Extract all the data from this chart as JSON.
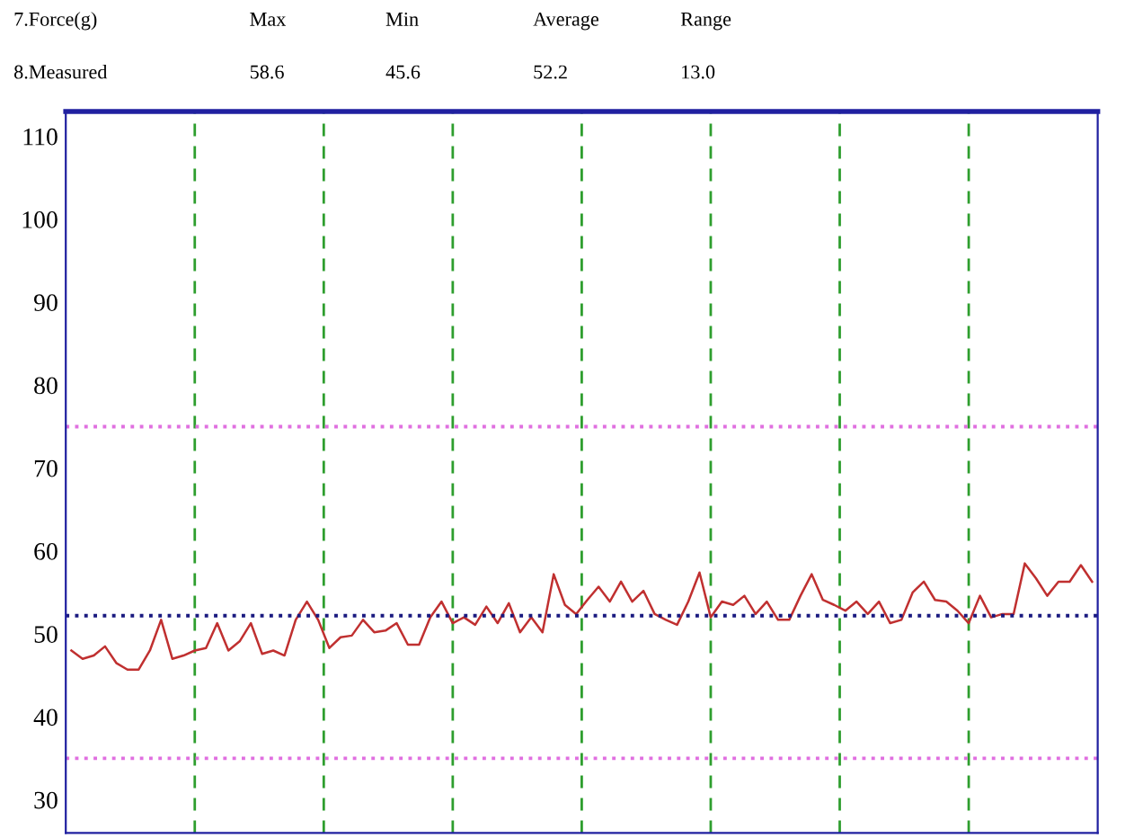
{
  "chart_data": {
    "type": "line",
    "annotations": [
      "7.Force(g)",
      "Max",
      "Min",
      "Average",
      "Range",
      "8.Measured",
      "58.6",
      "45.6",
      "52.2",
      "13.0"
    ],
    "categories": [
      null,
      null,
      null,
      null,
      null,
      null,
      null,
      null,
      null,
      null,
      null,
      null,
      null,
      null,
      null,
      null,
      null,
      null,
      null,
      null,
      null,
      null,
      null,
      null,
      null,
      null,
      null,
      null,
      null,
      null,
      null,
      null,
      null,
      null,
      null,
      null,
      null,
      null,
      null,
      null,
      null,
      null,
      null,
      null,
      null,
      null,
      null,
      null,
      null,
      null,
      null,
      null,
      null,
      null,
      null,
      null,
      null,
      null,
      null,
      null,
      null,
      null,
      null,
      null,
      null,
      null,
      null,
      null,
      null,
      null,
      null,
      null,
      null,
      null,
      null,
      null,
      null,
      null,
      null,
      null,
      null,
      null,
      null,
      null,
      null,
      null,
      null,
      null,
      null,
      null,
      null,
      null
    ],
    "series": [
      {
        "color": "#c03030",
        "values": [
          48.0,
          47.0,
          47.4,
          48.5,
          46.5,
          45.7,
          45.7,
          48.0,
          51.7,
          47.0,
          47.4,
          48.0,
          48.3,
          51.3,
          48.0,
          49.1,
          51.3,
          47.6,
          48.0,
          47.4,
          51.7,
          53.9,
          51.7,
          48.3,
          49.6,
          49.8,
          51.7,
          50.2,
          50.4,
          51.3,
          48.7,
          48.7,
          52.0,
          53.9,
          51.3,
          52.0,
          51.1,
          53.3,
          51.3,
          53.7,
          50.2,
          52.0,
          50.2,
          57.2,
          53.5,
          52.4,
          54.1,
          55.7,
          53.9,
          56.3,
          53.9,
          55.2,
          52.4,
          51.7,
          51.1,
          53.9,
          57.4,
          52.0,
          53.9,
          53.5,
          54.6,
          52.4,
          53.9,
          51.7,
          51.7,
          54.6,
          57.2,
          54.1,
          53.5,
          52.8,
          53.9,
          52.4,
          53.9,
          51.3,
          51.7,
          55.0,
          56.3,
          54.1,
          53.9,
          52.8,
          51.3,
          54.6,
          52.0,
          52.4,
          52.4,
          58.5,
          56.7,
          54.6,
          56.3,
          56.3,
          58.3,
          56.3
        ]
      }
    ],
    "ylim": [
      26,
      113
    ],
    "yticks": [
      30,
      40,
      50,
      60,
      70,
      80,
      90,
      100,
      110
    ],
    "tick_labels": "y",
    "grid": "x",
    "legend": false,
    "marker": "none",
    "line_style": "solid",
    "ref_lines": [
      {
        "axis": "y",
        "value": 75,
        "color": "#e070e0",
        "line_style": "dotted"
      },
      {
        "axis": "y",
        "value": 35,
        "color": "#e070e0",
        "line_style": "dotted"
      },
      {
        "axis": "y",
        "value": 52.2,
        "color": "#1a1a80",
        "line_style": "dotted"
      }
    ]
  }
}
